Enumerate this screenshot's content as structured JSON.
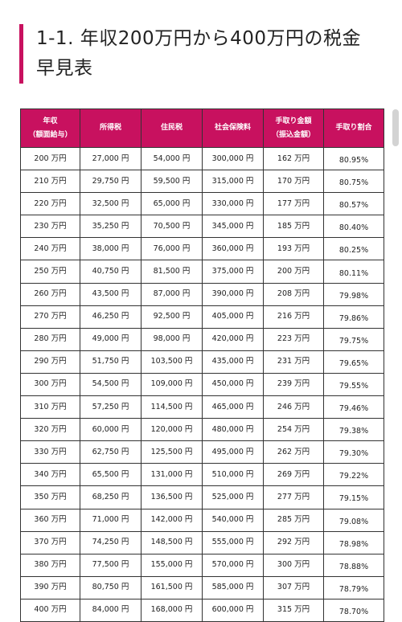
{
  "heading": {
    "title": "1-1. 年収200万円から400万円の税金早見表"
  },
  "table": {
    "headers": [
      {
        "line1": "年収",
        "line2": "（額面給与）"
      },
      {
        "line1": "所得税",
        "line2": ""
      },
      {
        "line1": "住民税",
        "line2": ""
      },
      {
        "line1": "社会保険料",
        "line2": ""
      },
      {
        "line1": "手取り金額",
        "line2": "（振込金額）"
      },
      {
        "line1": "手取り割合",
        "line2": ""
      }
    ],
    "rows": [
      [
        "200 万円",
        "27,000 円",
        "54,000 円",
        "300,000 円",
        "162 万円",
        "80.95%"
      ],
      [
        "210 万円",
        "29,750 円",
        "59,500 円",
        "315,000 円",
        "170 万円",
        "80.75%"
      ],
      [
        "220 万円",
        "32,500 円",
        "65,000 円",
        "330,000 円",
        "177 万円",
        "80.57%"
      ],
      [
        "230 万円",
        "35,250 円",
        "70,500 円",
        "345,000 円",
        "185 万円",
        "80.40%"
      ],
      [
        "240 万円",
        "38,000 円",
        "76,000 円",
        "360,000 円",
        "193 万円",
        "80.25%"
      ],
      [
        "250 万円",
        "40,750 円",
        "81,500 円",
        "375,000 円",
        "200 万円",
        "80.11%"
      ],
      [
        "260 万円",
        "43,500 円",
        "87,000 円",
        "390,000 円",
        "208 万円",
        "79.98%"
      ],
      [
        "270 万円",
        "46,250 円",
        "92,500 円",
        "405,000 円",
        "216 万円",
        "79.86%"
      ],
      [
        "280 万円",
        "49,000 円",
        "98,000 円",
        "420,000 円",
        "223 万円",
        "79.75%"
      ],
      [
        "290 万円",
        "51,750 円",
        "103,500 円",
        "435,000 円",
        "231 万円",
        "79.65%"
      ],
      [
        "300 万円",
        "54,500 円",
        "109,000 円",
        "450,000 円",
        "239 万円",
        "79.55%"
      ],
      [
        "310 万円",
        "57,250 円",
        "114,500 円",
        "465,000 円",
        "246 万円",
        "79.46%"
      ],
      [
        "320 万円",
        "60,000 円",
        "120,000 円",
        "480,000 円",
        "254 万円",
        "79.38%"
      ],
      [
        "330 万円",
        "62,750 円",
        "125,500 円",
        "495,000 円",
        "262 万円",
        "79.30%"
      ],
      [
        "340 万円",
        "65,500 円",
        "131,000 円",
        "510,000 円",
        "269 万円",
        "79.22%"
      ],
      [
        "350 万円",
        "68,250 円",
        "136,500 円",
        "525,000 円",
        "277 万円",
        "79.15%"
      ],
      [
        "360 万円",
        "71,000 円",
        "142,000 円",
        "540,000 円",
        "285 万円",
        "79.08%"
      ],
      [
        "370 万円",
        "74,250 円",
        "148,500 円",
        "555,000 円",
        "292 万円",
        "78.98%"
      ],
      [
        "380 万円",
        "77,500 円",
        "155,000 円",
        "570,000 円",
        "300 万円",
        "78.88%"
      ],
      [
        "390 万円",
        "80,750 円",
        "161,500 円",
        "585,000 円",
        "307 万円",
        "78.79%"
      ],
      [
        "400 万円",
        "84,000 円",
        "168,000 円",
        "600,000 円",
        "315 万円",
        "78.70%"
      ]
    ]
  }
}
